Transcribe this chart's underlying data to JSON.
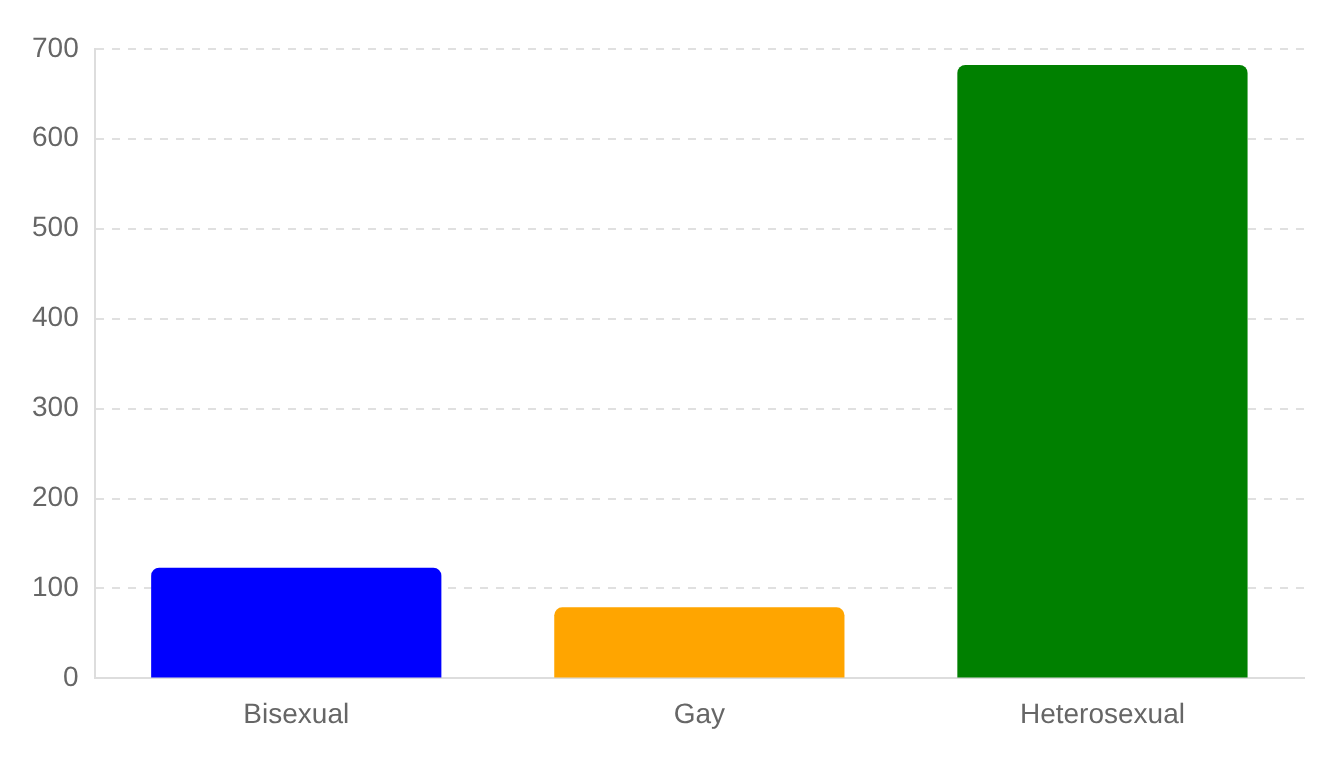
{
  "chart_data": {
    "type": "bar",
    "categories": [
      "Bisexual",
      "Gay",
      "Heterosexual"
    ],
    "values": [
      123,
      79,
      682
    ],
    "colors": [
      "#0000ff",
      "#ffa500",
      "#008000"
    ],
    "ylim": [
      0,
      700
    ],
    "yticks": [
      0,
      100,
      200,
      300,
      400,
      500,
      600,
      700
    ],
    "grid": "y"
  }
}
